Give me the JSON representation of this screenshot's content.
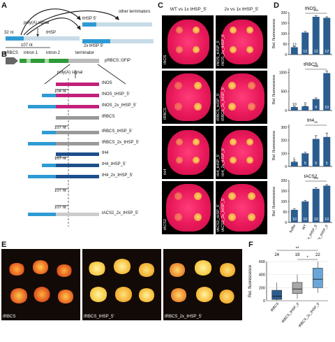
{
  "panels": {
    "A": "A",
    "B": "B",
    "C": "C",
    "D": "D",
    "E": "E",
    "F": "F"
  },
  "panelA": {
    "other_terminators": "other terminators",
    "thsp_5": "tHSP 5'",
    "polya": "poly(A) signal",
    "nt32": "32 nt",
    "thsp": "tHSP",
    "nt107": "107 nt",
    "thsp2x": "2x tHSP 5'"
  },
  "panelB": {
    "prbcs": "pRBCS",
    "intron1": "intron 1",
    "intron2": "intron 2",
    "terminator": "terminator",
    "gfp": "pRBCS::GFiP",
    "polya": "poly(A) signal",
    "nt104": "104 nt",
    "nt107": "107 nt",
    "constructs": [
      "tNOS",
      "tNOS_tHSP_5'",
      "tNOS_2x_tHSP_5'",
      "tRBCS",
      "tRBCS_tHSP_5'",
      "tRBCS_2x_tHSP_5'",
      "tH4",
      "tH4_tHSP_5'",
      "tH4_2x_tHSP_5'",
      "tACS2_2x_tHSP_5'"
    ]
  },
  "panelC": {
    "header_left": "WT vs 1x tHSP_5'",
    "header_right": "2x vs 1x tHSP_5'",
    "rows": [
      {
        "name": "tNOS",
        "right": [
          "tNOS_tHSP_5'",
          "tNOS_2x_tHSP_5'"
        ]
      },
      {
        "name": "tRBCS",
        "right": [
          "tRBCS_tHSP_5'",
          "tRBCS_2x_tHSP_5'"
        ]
      },
      {
        "name": "tH4",
        "right": [
          "tH4_tHSP_5'",
          "tH4_2x_tHSP_5'"
        ]
      },
      {
        "name": "tACS2",
        "right": [
          "tACS2_tHSP_5'",
          "tACS2_2x_tHSP_5'"
        ]
      }
    ]
  },
  "panelD": {
    "ylabel": "Rel. fluorescence",
    "xcats": [
      "buffer",
      "WT",
      "1x_tHSP_5'",
      "2x_tHSP_5'"
    ],
    "charts": [
      {
        "title": "tNOS",
        "ticks": [
          "0",
          "50",
          "100",
          "150",
          "200"
        ],
        "ymax": 200,
        "values": [
          35,
          105,
          180,
          175
        ],
        "errs": [
          4,
          5,
          6,
          5
        ],
        "n": [
          "12",
          "12",
          "12",
          "12"
        ],
        "sig": "***"
      },
      {
        "title": "tRBCS",
        "ticks": [
          "0",
          "500",
          "1000"
        ],
        "ymax": 1100,
        "values": [
          90,
          110,
          300,
          980
        ],
        "errs": [
          15,
          15,
          30,
          60
        ],
        "n": [
          "10",
          "9",
          "9",
          "10"
        ],
        "sig": "***"
      },
      {
        "title": "tH4",
        "ticks": [
          "0",
          "100",
          "200",
          "300"
        ],
        "ymax": 320,
        "values": [
          35,
          100,
          210,
          225
        ],
        "errs": [
          5,
          8,
          25,
          30
        ],
        "n": [
          "5",
          "5",
          "5",
          "5"
        ],
        "sig": "**"
      },
      {
        "title": "tACS2",
        "ticks": [
          "0",
          "50",
          "100",
          "150",
          "200"
        ],
        "ymax": 200,
        "values": [
          60,
          100,
          160,
          175
        ],
        "errs": [
          5,
          5,
          6,
          5
        ],
        "n": [
          "10",
          "10",
          "10",
          "10"
        ],
        "sig": "***"
      }
    ]
  },
  "panelE": {
    "labels": [
      "tRBCS",
      "tRBCS_tHSP_5'",
      "tRBCS_2x_tHSP_5'"
    ]
  },
  "panelF": {
    "ylabel": "Rel. fluorescence",
    "ticks": [
      "0",
      "200",
      "400",
      "600"
    ],
    "n": [
      "24",
      "19",
      "22"
    ],
    "sig_top": "**",
    "sig_bottom": "*",
    "xcats": [
      "tRBCS",
      "tRBCS_tHSP_5'",
      "tRBCS_2x_tHSP_5'"
    ]
  },
  "chart_data": [
    {
      "type": "bar",
      "title": "tNOS",
      "categories": [
        "buffer",
        "WT",
        "1x_tHSP_5'",
        "2x_tHSP_5'"
      ],
      "values": [
        35,
        105,
        180,
        175
      ],
      "ylabel": "Rel. fluorescence",
      "ylim": [
        0,
        200
      ]
    },
    {
      "type": "bar",
      "title": "tRBCS",
      "categories": [
        "buffer",
        "WT",
        "1x_tHSP_5'",
        "2x_tHSP_5'"
      ],
      "values": [
        90,
        110,
        300,
        980
      ],
      "ylabel": "Rel. fluorescence",
      "ylim": [
        0,
        1100
      ]
    },
    {
      "type": "bar",
      "title": "tH4",
      "categories": [
        "buffer",
        "WT",
        "1x_tHSP_5'",
        "2x_tHSP_5'"
      ],
      "values": [
        35,
        100,
        210,
        225
      ],
      "ylabel": "Rel. fluorescence",
      "ylim": [
        0,
        320
      ]
    },
    {
      "type": "bar",
      "title": "tACS2",
      "categories": [
        "buffer",
        "WT",
        "1x_tHSP_5'",
        "2x_tHSP_5'"
      ],
      "values": [
        60,
        100,
        160,
        175
      ],
      "ylabel": "Rel. fluorescence",
      "ylim": [
        0,
        200
      ]
    },
    {
      "type": "box",
      "categories": [
        "tRBCS",
        "tRBCS_tHSP_5'",
        "tRBCS_2x_tHSP_5'"
      ],
      "medians": [
        70,
        180,
        330
      ],
      "q1": [
        20,
        110,
        200
      ],
      "q3": [
        160,
        280,
        500
      ],
      "ylabel": "Rel. fluorescence",
      "ylim": [
        0,
        600
      ]
    }
  ]
}
